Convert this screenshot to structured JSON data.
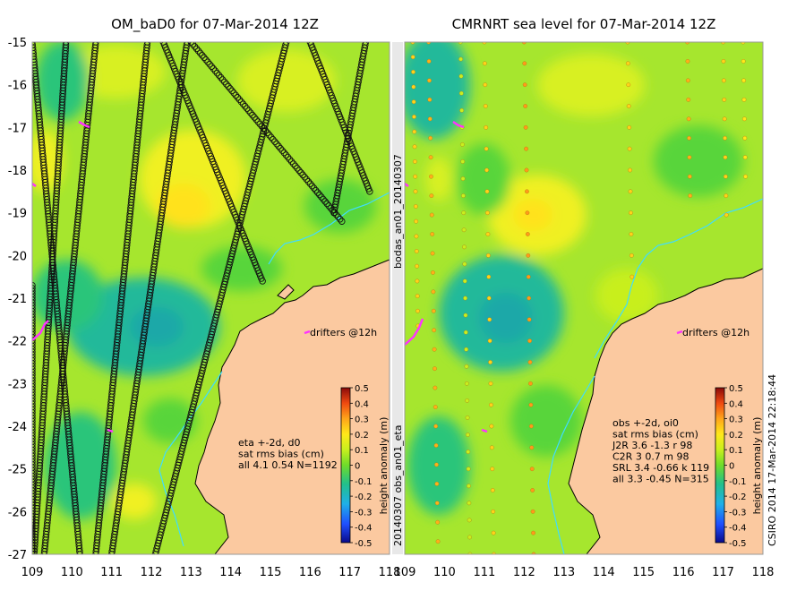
{
  "chart_data": [
    {
      "type": "heatmap",
      "title": "OM_baD0 for 07-Mar-2014 12Z",
      "x_ticks": [
        "109",
        "110",
        "111",
        "112",
        "113",
        "114",
        "115",
        "116",
        "117",
        "118"
      ],
      "y_ticks": [
        "-15",
        "-16",
        "-17",
        "-18",
        "-19",
        "-20",
        "-21",
        "-22",
        "-23",
        "-24",
        "-25",
        "-26",
        "-27"
      ],
      "xlim": [
        109,
        118
      ],
      "ylim": [
        -27,
        -15
      ],
      "drifters_label": "drifters @12h",
      "colorbar": {
        "label": "height anomaly (m)",
        "ticks": [
          "0.5",
          "0.4",
          "0.3",
          "0.2",
          "0.1",
          "0",
          "-0.1",
          "-0.2",
          "-0.3",
          "-0.4",
          "-0.5"
        ],
        "range": [
          -0.5,
          0.5
        ]
      },
      "stats_lines": [
        "eta +-2d, d0",
        "sat rms bias (cm)",
        "all 4.1 0.54 N=1192"
      ],
      "tracks": [
        {
          "from": [
            109.05,
            -27
          ],
          "to": [
            109.85,
            -15
          ]
        },
        {
          "from": [
            109.3,
            -27
          ],
          "to": [
            110.6,
            -15
          ]
        },
        {
          "from": [
            110.2,
            -27
          ],
          "to": [
            109.0,
            -15
          ]
        },
        {
          "from": [
            111.0,
            -27
          ],
          "to": [
            112.9,
            -15
          ]
        },
        {
          "from": [
            112.1,
            -27
          ],
          "to": [
            115.4,
            -15
          ]
        },
        {
          "from": [
            110.6,
            -27
          ],
          "to": [
            111.9,
            -15
          ]
        },
        {
          "from": [
            114.8,
            -20.6
          ],
          "to": [
            112.3,
            -15
          ]
        },
        {
          "from": [
            117.5,
            -18.5
          ],
          "to": [
            116.0,
            -15
          ]
        },
        {
          "from": [
            116.6,
            -19.0
          ],
          "to": [
            117.4,
            -15
          ]
        },
        {
          "from": [
            116.8,
            -19.2
          ],
          "to": [
            113.0,
            -15
          ]
        },
        {
          "from": [
            109.0,
            -20.7
          ],
          "to": [
            109.0,
            -27
          ]
        }
      ]
    },
    {
      "type": "heatmap",
      "title": "CMRNRT sea level  for 07-Mar-2014 12Z",
      "x_ticks": [
        "109",
        "110",
        "111",
        "112",
        "113",
        "114",
        "115",
        "116",
        "117",
        "118"
      ],
      "xlim": [
        109,
        118
      ],
      "ylim": [
        -27,
        -15
      ],
      "drifters_label": "drifters @12h",
      "colorbar": {
        "label": "height anomaly (m)",
        "ticks": [
          "0.5",
          "0.4",
          "0.3",
          "0.2",
          "0.1",
          "0",
          "-0.1",
          "-0.2",
          "-0.3",
          "-0.4",
          "-0.5"
        ],
        "range": [
          -0.5,
          0.5
        ]
      },
      "stats_lines": [
        "obs +-2d, oi0",
        "sat rms bias (cm)",
        "J2R   3.6 -1.3 r 98",
        "C2R   3 0.7 m 98",
        "SRL   3.4 -0.66 k 119",
        "all   3.3 -0.45 N=315"
      ]
    }
  ],
  "side_labels": {
    "middle_top": "bodas_an01_20140307",
    "middle_bottom": "20140307 obs_an01_eta",
    "right": "CSIRO 2014  17-Mar-2014 22:18:44"
  },
  "colors": {
    "land": "#fbc9a0",
    "sea_base": "#a6e62e",
    "low": "#22b99a",
    "high": "#f0f020",
    "drifter": "#ff33ff",
    "isobath": "#3fdcff"
  }
}
